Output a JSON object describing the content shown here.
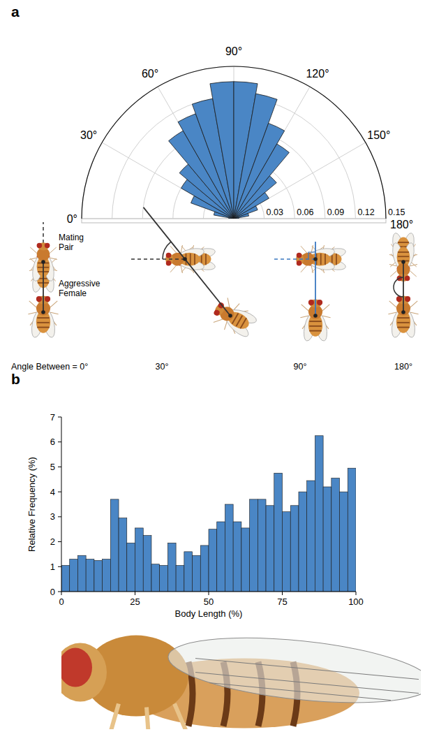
{
  "chart_data": [
    {
      "type": "rose",
      "panel_label": "a",
      "bins": [
        0,
        10,
        20,
        30,
        40,
        50,
        60,
        70,
        80,
        90,
        100,
        110,
        120,
        130,
        140,
        150,
        160,
        170,
        180
      ],
      "values": [
        0.005,
        0.02,
        0.045,
        0.06,
        0.07,
        0.1,
        0.11,
        0.12,
        0.135,
        0.135,
        0.125,
        0.1,
        0.085,
        0.055,
        0.04,
        0.025,
        0.015,
        0.005
      ],
      "color": "#4a86c5",
      "xlim": [
        0,
        180
      ],
      "xticks": [
        {
          "value": 0,
          "label": "0°"
        },
        {
          "value": 30,
          "label": "30°"
        },
        {
          "value": 60,
          "label": "60°"
        },
        {
          "value": 90,
          "label": "90°"
        },
        {
          "value": 120,
          "label": "120°"
        },
        {
          "value": 150,
          "label": "150°"
        },
        {
          "value": 180,
          "label": "180°"
        }
      ],
      "ylim": [
        0,
        0.15
      ],
      "yticks": [
        0.03,
        0.06,
        0.09,
        0.12,
        0.15
      ],
      "grid": true,
      "annotations": [
        "Mating Pair",
        "Aggressive Female",
        "Angle Between = 0°",
        "30°",
        "90°",
        "180°"
      ]
    },
    {
      "type": "histogram",
      "panel_label": "b",
      "bins": [
        0,
        2.78,
        5.56,
        8.33,
        11.11,
        13.89,
        16.67,
        19.44,
        22.22,
        25,
        27.78,
        30.56,
        33.33,
        36.11,
        38.89,
        41.67,
        44.44,
        47.22,
        50,
        52.78,
        55.56,
        58.33,
        61.11,
        63.89,
        66.67,
        69.44,
        72.22,
        75,
        77.78,
        80.56,
        83.33,
        86.11,
        88.89,
        91.67,
        94.44,
        97.22,
        100
      ],
      "values": [
        1.05,
        1.3,
        1.45,
        1.3,
        1.25,
        1.3,
        3.7,
        2.95,
        1.95,
        2.55,
        2.25,
        1.1,
        1.05,
        1.95,
        1.05,
        1.6,
        1.45,
        1.85,
        2.5,
        2.8,
        3.5,
        2.8,
        2.55,
        3.7,
        3.7,
        3.45,
        4.75,
        3.2,
        3.45,
        4.0,
        4.45,
        6.25,
        4.2,
        4.55,
        4.0,
        4.95
      ],
      "color": "#4a86c5",
      "xlabel": "Body Length (%)",
      "ylabel": "Relative Frequency (%)",
      "xlim": [
        0,
        100
      ],
      "xticks": [
        0,
        25,
        50,
        75,
        100
      ],
      "ylim": [
        0,
        7
      ],
      "yticks": [
        0,
        1,
        2,
        3,
        4,
        5,
        6,
        7
      ],
      "grid": false
    }
  ]
}
